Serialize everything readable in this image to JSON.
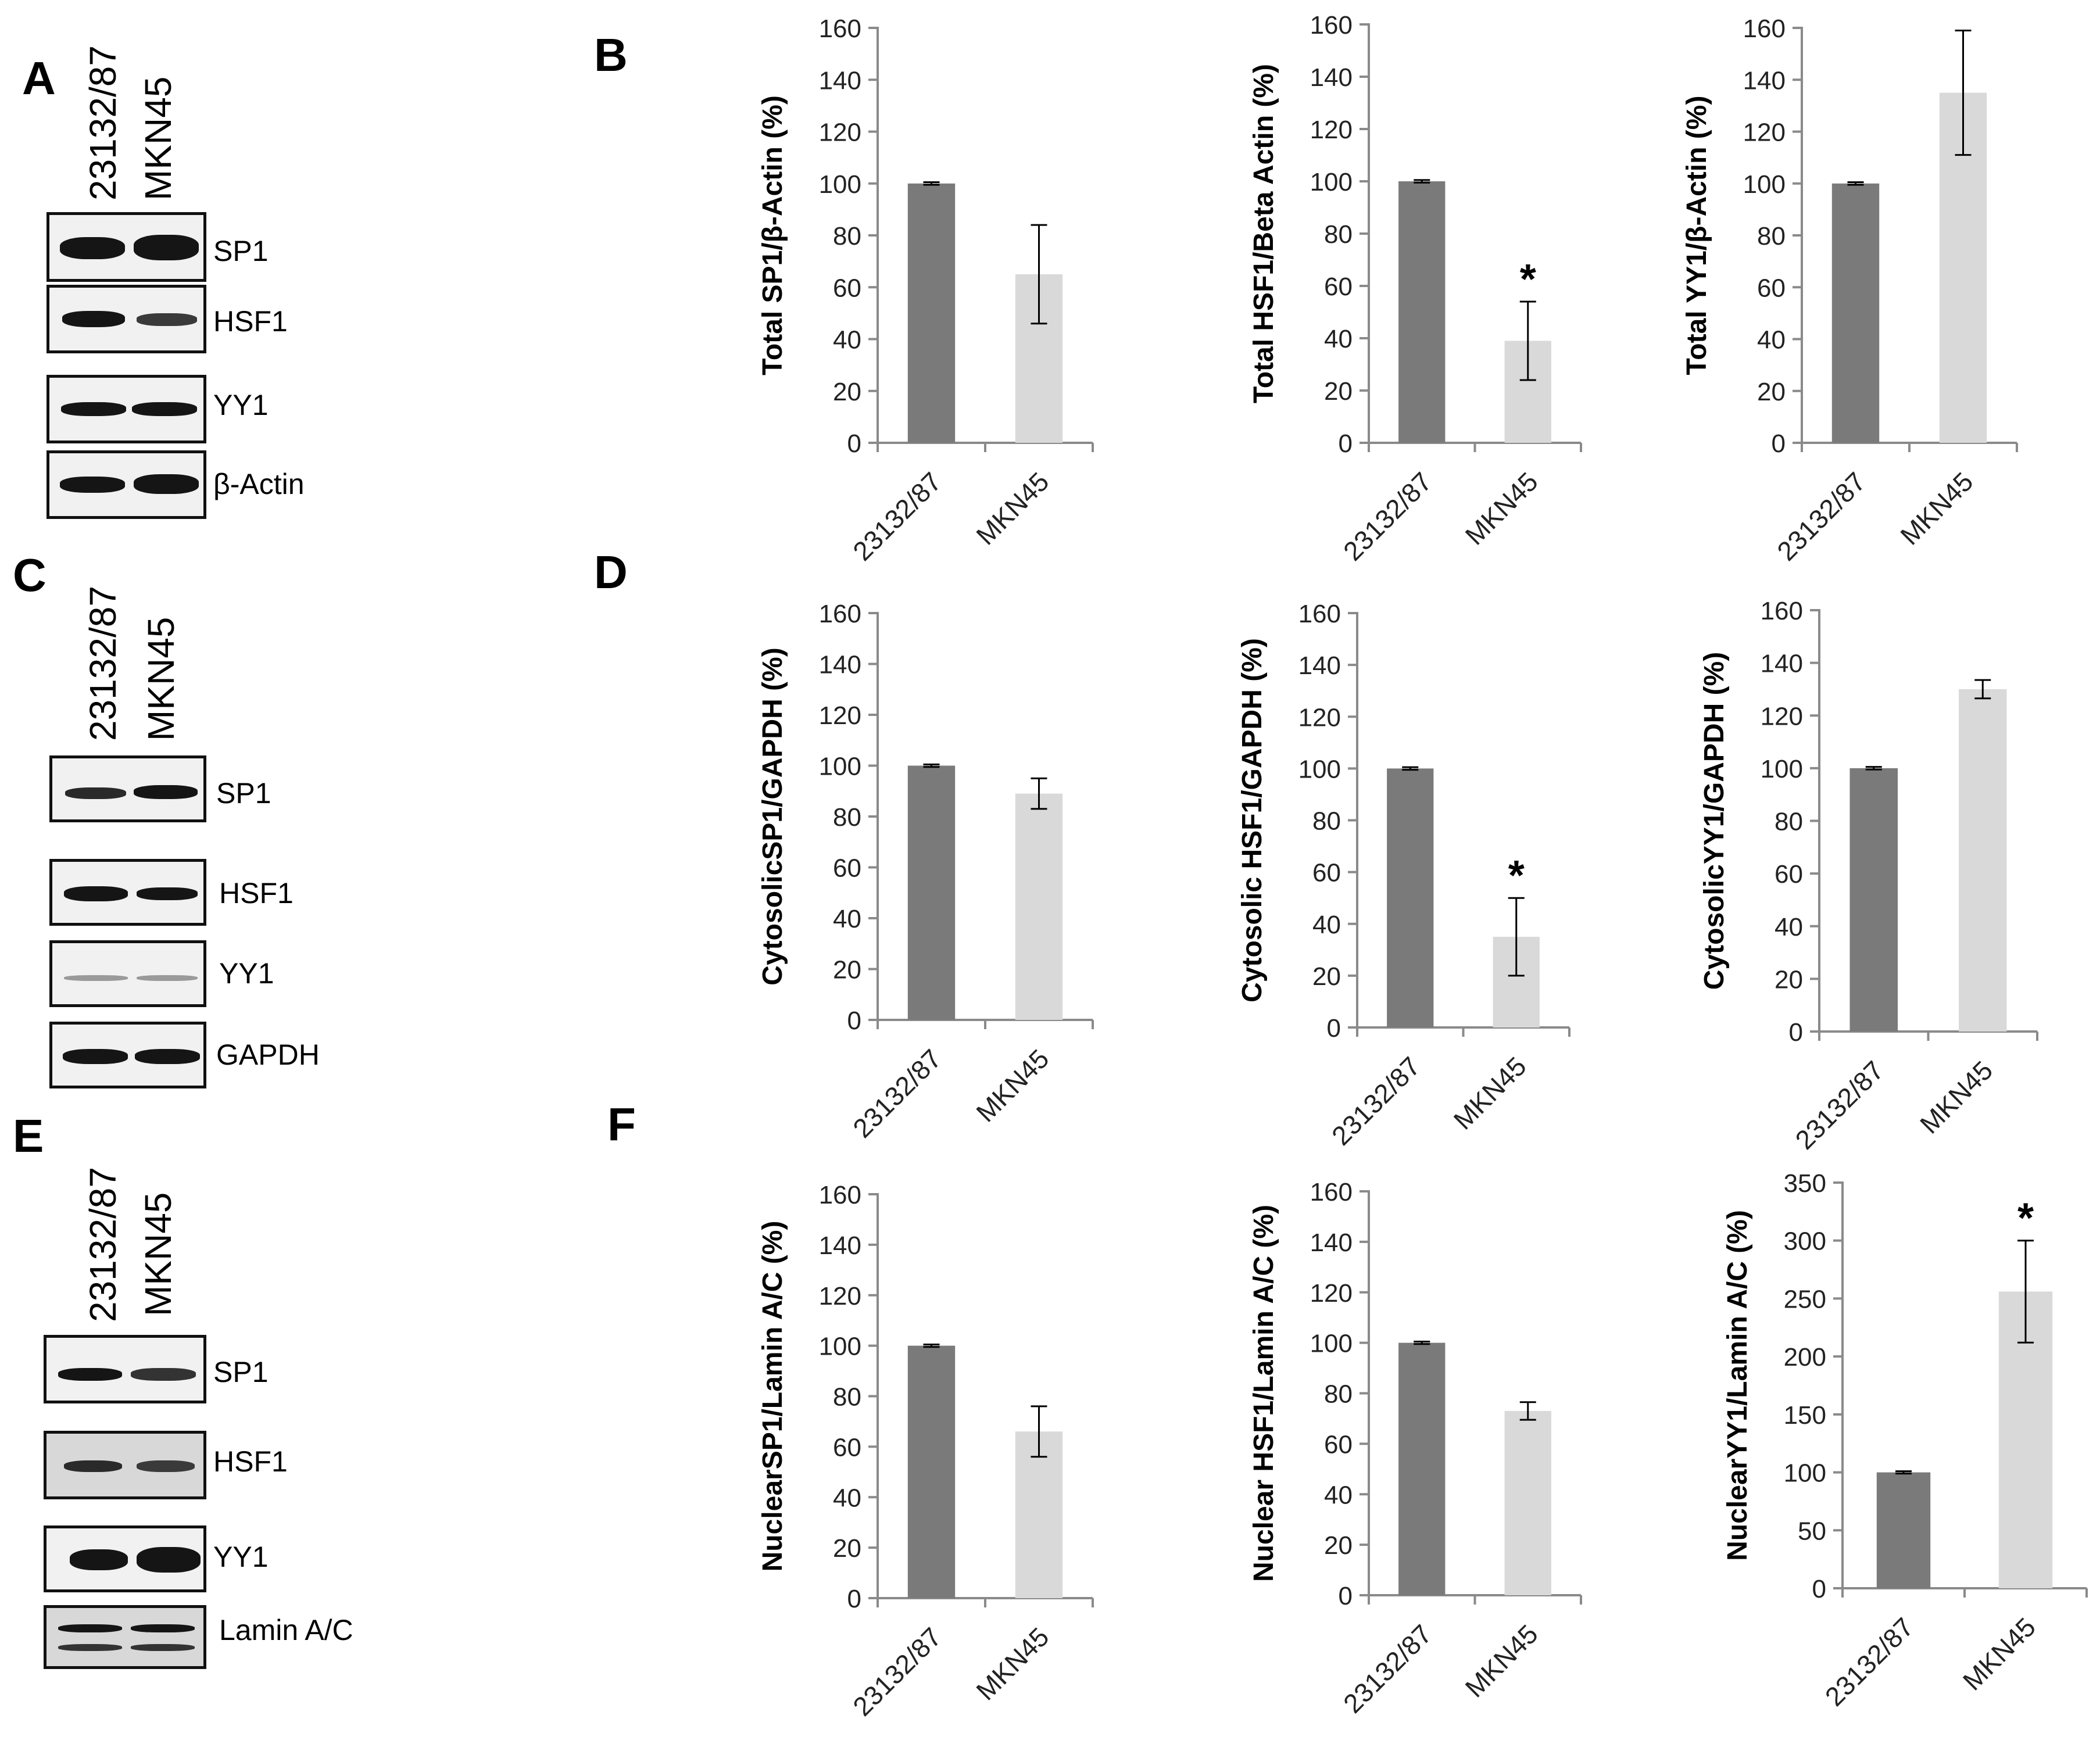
{
  "figure": {
    "panel_letters": {
      "a": "A",
      "b": "B",
      "c": "C",
      "d": "D",
      "e": "E",
      "f": "F"
    },
    "lane_labels": [
      "23132/87",
      "MKN45"
    ],
    "blots": {
      "A": [
        "SP1",
        "HSF1",
        "YY1",
        "β-Actin"
      ],
      "C": [
        "SP1",
        "HSF1",
        "YY1",
        "GAPDH"
      ],
      "E": [
        "SP1",
        "HSF1",
        "YY1",
        "Lamin A/C"
      ]
    },
    "colors": {
      "bar_23132": "#7a7a7a",
      "bar_mkn45": "#d9d9d9",
      "axis": "#8a8a8a"
    }
  },
  "chart_data": [
    {
      "type": "bar",
      "panel": "B",
      "ylabel": "Total SP1/β-Actin  (%)",
      "categories": [
        "23132/87",
        "MKN45"
      ],
      "values": [
        100,
        65
      ],
      "errors": [
        0.5,
        19
      ],
      "ylim": [
        0,
        160
      ],
      "yticks": [
        0,
        20,
        40,
        60,
        80,
        100,
        120,
        140,
        160
      ],
      "significance": [
        "",
        ""
      ]
    },
    {
      "type": "bar",
      "panel": "B",
      "ylabel": "Total HSF1/Beta Actin (%)",
      "categories": [
        "23132/87",
        "MKN45"
      ],
      "values": [
        100,
        39
      ],
      "errors": [
        0.5,
        15
      ],
      "ylim": [
        0,
        160
      ],
      "yticks": [
        0,
        20,
        40,
        60,
        80,
        100,
        120,
        140,
        160
      ],
      "significance": [
        "",
        "*"
      ]
    },
    {
      "type": "bar",
      "panel": "B",
      "ylabel": "Total YY1/β-Actin (%)",
      "categories": [
        "23132/87",
        "MKN45"
      ],
      "values": [
        100,
        135
      ],
      "errors": [
        0.5,
        24
      ],
      "ylim": [
        0,
        160
      ],
      "yticks": [
        0,
        20,
        40,
        60,
        80,
        100,
        120,
        140,
        160
      ],
      "significance": [
        "",
        ""
      ]
    },
    {
      "type": "bar",
      "panel": "D",
      "ylabel": "CytosolicSP1/GAPDH (%)",
      "categories": [
        "23132/87",
        "MKN45"
      ],
      "values": [
        100,
        89
      ],
      "errors": [
        0.5,
        6
      ],
      "ylim": [
        0,
        160
      ],
      "yticks": [
        0,
        20,
        40,
        60,
        80,
        100,
        120,
        140,
        160
      ],
      "significance": [
        "",
        ""
      ]
    },
    {
      "type": "bar",
      "panel": "D",
      "ylabel": "Cytosolic HSF1/GAPDH (%)",
      "categories": [
        "23132/87",
        "MKN45"
      ],
      "values": [
        100,
        35
      ],
      "errors": [
        0.5,
        15
      ],
      "ylim": [
        0,
        160
      ],
      "yticks": [
        0,
        20,
        40,
        60,
        80,
        100,
        120,
        140,
        160
      ],
      "significance": [
        "",
        "*"
      ]
    },
    {
      "type": "bar",
      "panel": "D",
      "ylabel": "CytosolicYY1/GAPDH  (%)",
      "categories": [
        "23132/87",
        "MKN45"
      ],
      "values": [
        100,
        130
      ],
      "errors": [
        0.5,
        3.5
      ],
      "ylim": [
        0,
        160
      ],
      "yticks": [
        0,
        20,
        40,
        60,
        80,
        100,
        120,
        140,
        160
      ],
      "significance": [
        "",
        ""
      ]
    },
    {
      "type": "bar",
      "panel": "F",
      "ylabel": "NuclearSP1/Lamin A/C (%)",
      "categories": [
        "23132/87",
        "MKN45"
      ],
      "values": [
        100,
        66
      ],
      "errors": [
        0.5,
        10
      ],
      "ylim": [
        0,
        160
      ],
      "yticks": [
        0,
        20,
        40,
        60,
        80,
        100,
        120,
        140,
        160
      ],
      "significance": [
        "",
        ""
      ]
    },
    {
      "type": "bar",
      "panel": "F",
      "ylabel": "Nuclear HSF1/Lamin A/C  (%)",
      "categories": [
        "23132/87",
        "MKN45"
      ],
      "values": [
        100,
        73
      ],
      "errors": [
        0.5,
        3.5
      ],
      "ylim": [
        0,
        160
      ],
      "yticks": [
        0,
        20,
        40,
        60,
        80,
        100,
        120,
        140,
        160
      ],
      "significance": [
        "",
        ""
      ]
    },
    {
      "type": "bar",
      "panel": "F",
      "ylabel": "NuclearYY1/Lamin A/C (%)",
      "categories": [
        "23132/87",
        "MKN45"
      ],
      "values": [
        100,
        256
      ],
      "errors": [
        1,
        44
      ],
      "ylim": [
        0,
        350
      ],
      "yticks": [
        0,
        50,
        100,
        150,
        200,
        250,
        300,
        350
      ],
      "significance": [
        "",
        "*"
      ]
    }
  ]
}
